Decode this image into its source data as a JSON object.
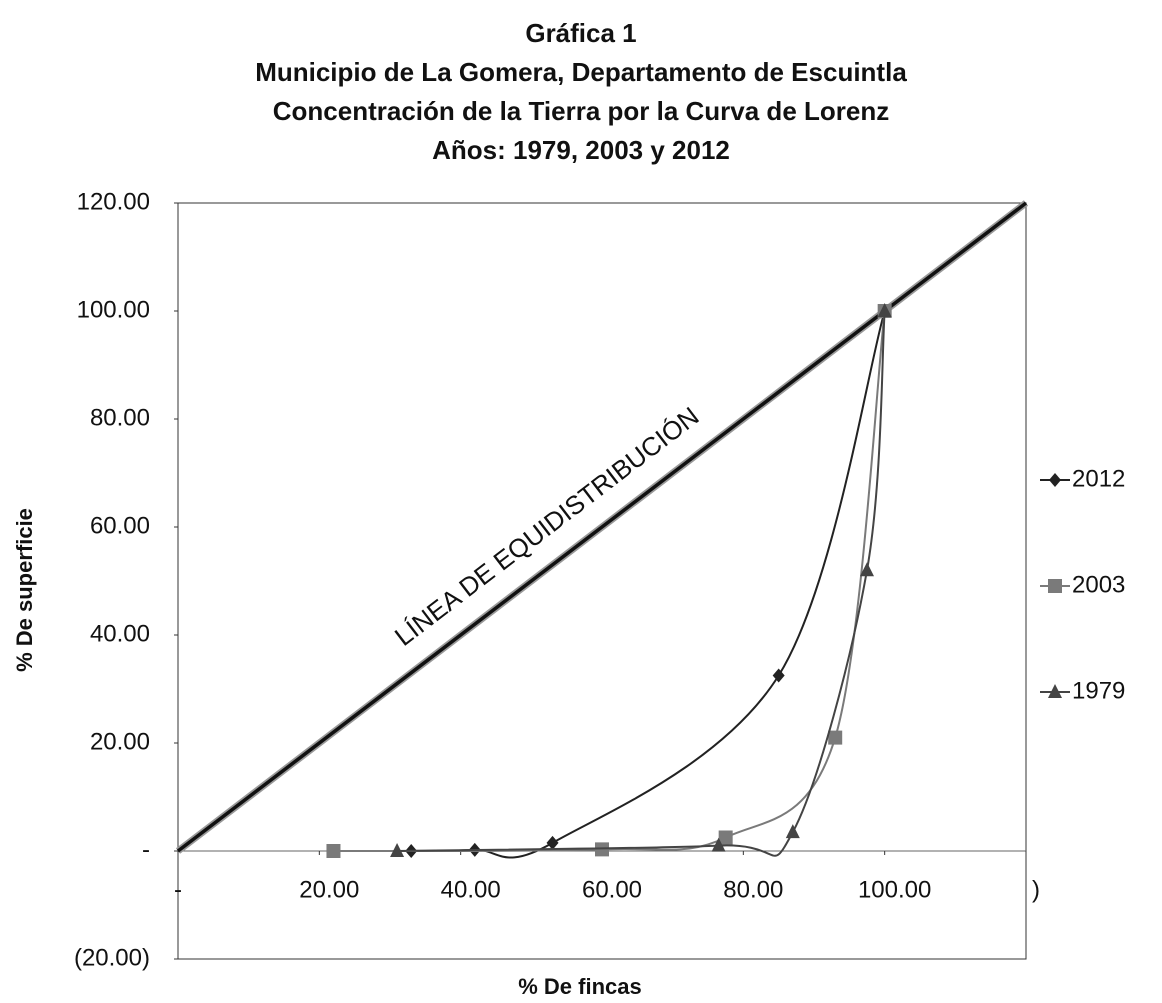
{
  "chart_data": {
    "type": "line",
    "title": [
      "Gráfica 1",
      "Municipio de La Gomera, Departamento de Escuintla",
      "Concentración de la Tierra por la Curva de Lorenz",
      "Años: 1979, 2003 y 2012"
    ],
    "xlabel": "% De fincas",
    "ylabel": "% De superficie",
    "xlim": [
      0,
      120
    ],
    "ylim": [
      -20,
      120
    ],
    "xticks": [
      {
        "value": 0,
        "label": "-"
      },
      {
        "value": 20,
        "label": "20.00"
      },
      {
        "value": 40,
        "label": "40.00"
      },
      {
        "value": 60,
        "label": "60.00"
      },
      {
        "value": 80,
        "label": "80.00"
      },
      {
        "value": 100,
        "label": "100.00"
      },
      {
        "value": 120,
        "label": ")"
      }
    ],
    "yticks": [
      {
        "value": -20,
        "label": "(20.00)"
      },
      {
        "value": 0,
        "label": "-"
      },
      {
        "value": 20,
        "label": "20.00"
      },
      {
        "value": 40,
        "label": "40.00"
      },
      {
        "value": 60,
        "label": "60.00"
      },
      {
        "value": 80,
        "label": "80.00"
      },
      {
        "value": 100,
        "label": "100.00"
      },
      {
        "value": 120,
        "label": "120.00"
      }
    ],
    "reference_line": {
      "label": "LÍNEA DE EQUIDISTRIBUCIÓN",
      "x": [
        0,
        120
      ],
      "values": [
        0,
        120
      ],
      "color": "#111"
    },
    "series": [
      {
        "name": "2012",
        "color": "#222",
        "marker": "diamond",
        "x": [
          33,
          42,
          53,
          85,
          100
        ],
        "values": [
          0,
          0.2,
          1.5,
          32.5,
          100
        ]
      },
      {
        "name": "2003",
        "color": "#7a7a7a",
        "marker": "square",
        "x": [
          22,
          60,
          77.5,
          93,
          100
        ],
        "values": [
          0,
          0.3,
          2.5,
          21,
          100
        ]
      },
      {
        "name": "1979",
        "color": "#444",
        "marker": "triangle",
        "x": [
          31,
          76.5,
          87,
          97.5,
          100
        ],
        "values": [
          0,
          1,
          3.5,
          52,
          100
        ]
      }
    ]
  }
}
